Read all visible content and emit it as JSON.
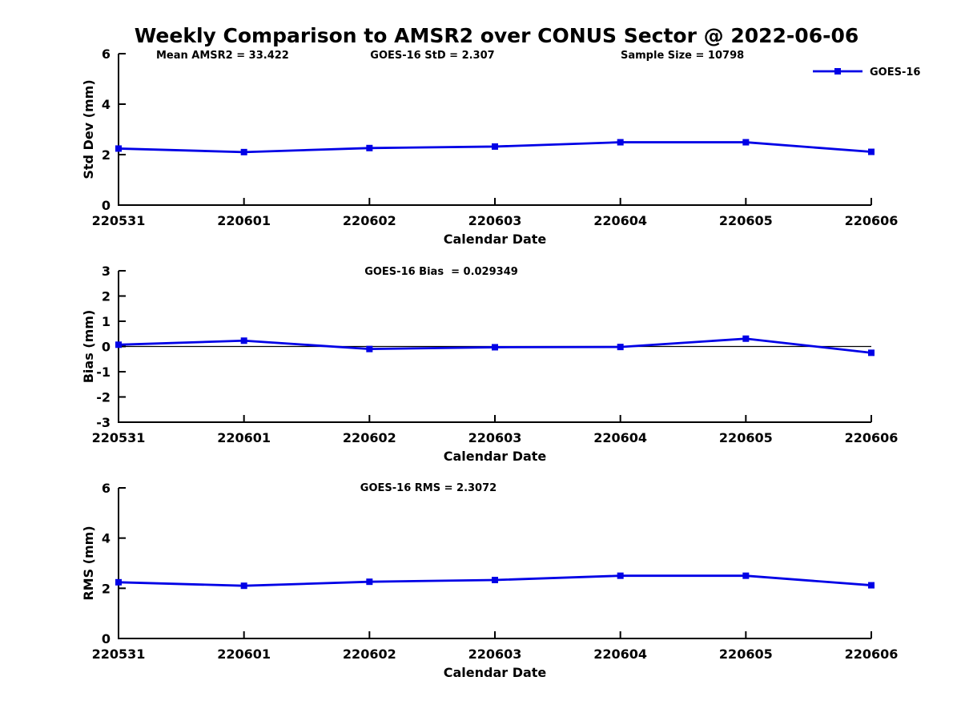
{
  "title": "Weekly Comparison to AMSR2 over CONUS Sector @ 2022-06-06",
  "accent_color": "#0000e6",
  "axis_color": "#000000",
  "x_axis_label": "Calendar Date",
  "categories": [
    "220531",
    "220601",
    "220602",
    "220603",
    "220604",
    "220605",
    "220606"
  ],
  "legend": {
    "label": "GOES-16",
    "position": "top-right"
  },
  "chart_data": [
    {
      "type": "line",
      "ylabel": "Std Dev (mm)",
      "xlabel": "Calendar Date",
      "categories": [
        "220531",
        "220601",
        "220602",
        "220603",
        "220604",
        "220605",
        "220606"
      ],
      "series": [
        {
          "name": "GOES-16",
          "values": [
            2.24,
            2.1,
            2.26,
            2.32,
            2.49,
            2.49,
            2.11
          ]
        }
      ],
      "ylim": [
        0,
        6
      ],
      "yticks": [
        0,
        2,
        4,
        6
      ],
      "grid": false,
      "zero_line": false,
      "legend_position": "top-right",
      "annotations": [
        "Mean AMSR2 = 33.422",
        "GOES-16 StD = 2.307",
        "Sample Size = 10798"
      ]
    },
    {
      "type": "line",
      "ylabel": "Bias (mm)",
      "xlabel": "Calendar Date",
      "categories": [
        "220531",
        "220601",
        "220602",
        "220603",
        "220604",
        "220605",
        "220606"
      ],
      "series": [
        {
          "name": "GOES-16",
          "values": [
            0.07,
            0.23,
            -0.1,
            -0.03,
            -0.02,
            0.31,
            -0.25
          ]
        }
      ],
      "ylim": [
        -3,
        3
      ],
      "yticks": [
        -3,
        -2,
        -1,
        0,
        1,
        2,
        3
      ],
      "grid": false,
      "zero_line": true,
      "annotations": [
        "GOES-16 Bias  = 0.029349"
      ]
    },
    {
      "type": "line",
      "ylabel": "RMS (mm)",
      "xlabel": "Calendar Date",
      "categories": [
        "220531",
        "220601",
        "220602",
        "220603",
        "220604",
        "220605",
        "220606"
      ],
      "series": [
        {
          "name": "GOES-16",
          "values": [
            2.24,
            2.1,
            2.26,
            2.33,
            2.5,
            2.5,
            2.12
          ]
        }
      ],
      "ylim": [
        0,
        6
      ],
      "yticks": [
        0,
        2,
        4,
        6
      ],
      "grid": false,
      "zero_line": false,
      "annotations": [
        "GOES-16 RMS = 2.3072"
      ]
    }
  ]
}
